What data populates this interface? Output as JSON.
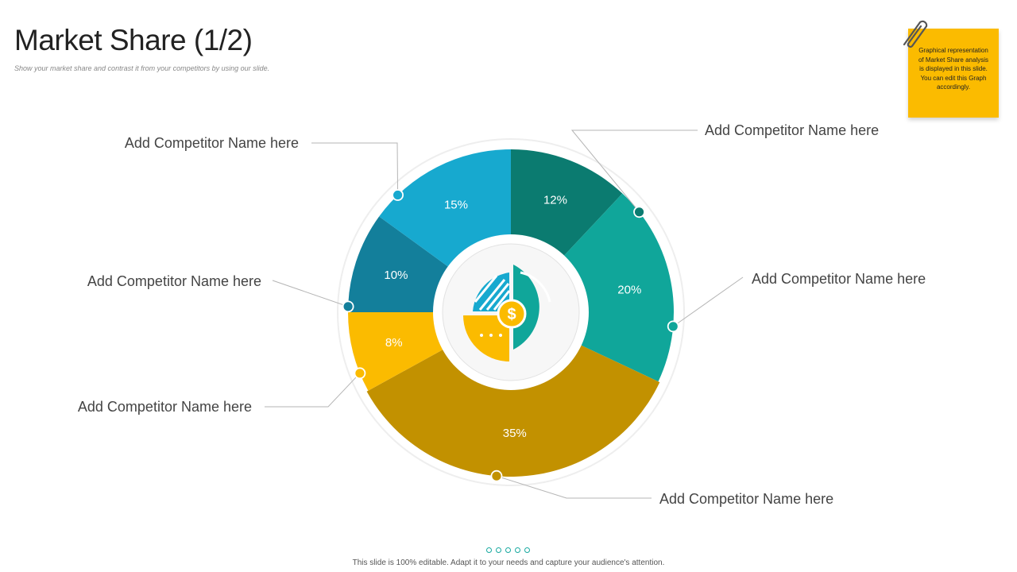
{
  "slide": {
    "title": "Market Share (1/2)",
    "subtitle": "Show your market share and contrast it from your competitors by using our slide.",
    "note": "Graphical representation of Market Share analysis is displayed in this slide. You can edit this Graph accordingly.",
    "footer": "This slide is 100% editable. Adapt it to your needs and capture your audience's attention."
  },
  "chart_data": {
    "type": "pie",
    "title": "Market Share (1/2)",
    "slices": [
      {
        "label": "Add Competitor Name here",
        "value": 12,
        "value_label": "12%",
        "color": "#0b7b70"
      },
      {
        "label": "Add Competitor Name here",
        "value": 20,
        "value_label": "20%",
        "color": "#10a69a"
      },
      {
        "label": "Add Competitor Name here",
        "value": 35,
        "value_label": "35%",
        "color": "#c29100"
      },
      {
        "label": "Add Competitor Name here",
        "value": 8,
        "value_label": "8%",
        "color": "#fbbb00"
      },
      {
        "label": "Add Competitor Name here",
        "value": 10,
        "value_label": "10%",
        "color": "#137f9b"
      },
      {
        "label": "Add Competitor Name here",
        "value": 15,
        "value_label": "15%",
        "color": "#17a9cf"
      }
    ],
    "center_icon": "dollar-pie-chart-icon"
  }
}
